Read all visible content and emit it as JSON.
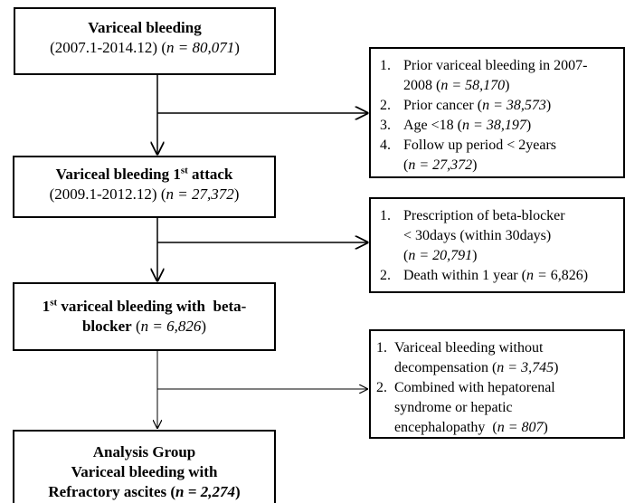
{
  "main": [
    {
      "lines": [
        [
          "Variceal bleeding"
        ],
        [
          "(2007.1-2014.12) (",
          "n = 80,071",
          ")"
        ]
      ]
    },
    {
      "lines": [
        [
          "Variceal bleeding 1",
          "st",
          " attack"
        ],
        [
          "(2009.1-2012.12) (",
          "n = 27,372",
          ")"
        ]
      ]
    },
    {
      "lines": [
        [
          "1",
          "st",
          " variceal bleeding with  beta-"
        ],
        [
          "blocker",
          " (",
          "n = 6,826",
          ")"
        ]
      ]
    },
    {
      "lines": [
        [
          "Analysis Group"
        ],
        [
          "Variceal bleeding with"
        ],
        [
          "Refractory ascites",
          " (",
          "n = 2,274",
          ")"
        ]
      ]
    }
  ],
  "exclusions": [
    {
      "lines": [
        [
          "1.",
          "Prior variceal bleeding in 2007-"
        ],
        [
          "2008 (",
          "n = 58,170",
          ")"
        ],
        [
          "2.",
          "Prior cancer (",
          "n = 38,573",
          ")"
        ],
        [
          "3.",
          "Age <18 (",
          "n = 38,197",
          ")"
        ],
        [
          "4.",
          "Follow up period < 2years"
        ],
        [
          "(",
          "n = 27,372",
          ")"
        ]
      ]
    },
    {
      "lines": [
        [
          "1.",
          "Prescription of beta-blocker"
        ],
        [
          "< 30days (within 30days)"
        ],
        [
          "(",
          "n = 20,791",
          ")"
        ],
        [
          "2.",
          "Death within 1 year (",
          "n =",
          " 6,826)"
        ]
      ]
    },
    {
      "lines": [
        [
          "1.",
          "Variceal bleeding without"
        ],
        [
          "decompensation (",
          "n = 3,745",
          ")"
        ],
        [
          "2.",
          "Combined with hepatorenal"
        ],
        [
          "syndrome or hepatic"
        ],
        [
          "encephalopathy  (",
          "n = 807",
          ")"
        ]
      ]
    }
  ]
}
